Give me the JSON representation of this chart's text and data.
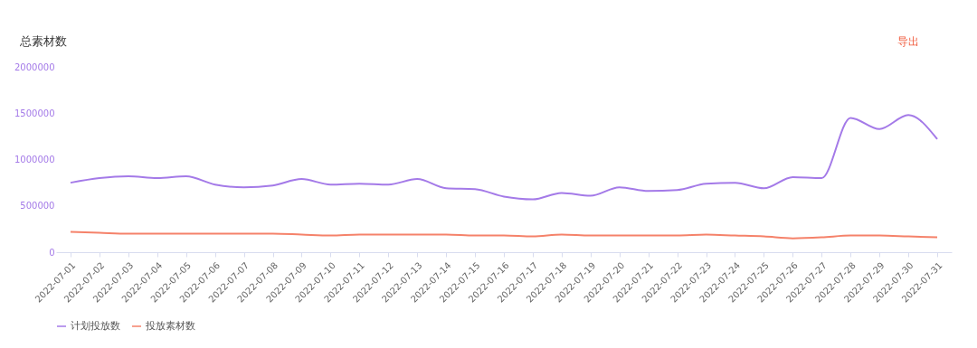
{
  "chart_data": {
    "type": "line",
    "categories": [
      "2022-07-01",
      "2022-07-02",
      "2022-07-03",
      "2022-07-04",
      "2022-07-05",
      "2022-07-06",
      "2022-07-07",
      "2022-07-08",
      "2022-07-09",
      "2022-07-10",
      "2022-07-11",
      "2022-07-12",
      "2022-07-13",
      "2022-07-14",
      "2022-07-15",
      "2022-07-16",
      "2022-07-17",
      "2022-07-18",
      "2022-07-19",
      "2022-07-20",
      "2022-07-21",
      "2022-07-22",
      "2022-07-23",
      "2022-07-24",
      "2022-07-25",
      "2022-07-26",
      "2022-07-27",
      "2022-07-28",
      "2022-07-29",
      "2022-07-30",
      "2022-07-31"
    ],
    "series": [
      {
        "name": "计划投放数",
        "color": "#a47ae8",
        "values": [
          750000,
          800000,
          820000,
          800000,
          820000,
          730000,
          700000,
          720000,
          790000,
          730000,
          740000,
          730000,
          790000,
          690000,
          680000,
          600000,
          570000,
          640000,
          610000,
          700000,
          660000,
          670000,
          740000,
          750000,
          690000,
          810000,
          800000,
          1450000,
          1330000,
          1480000,
          1220000
        ]
      },
      {
        "name": "投放素材数",
        "color": "#f5826a",
        "values": [
          220000,
          210000,
          200000,
          200000,
          200000,
          200000,
          200000,
          200000,
          190000,
          180000,
          190000,
          190000,
          190000,
          190000,
          180000,
          180000,
          170000,
          190000,
          180000,
          180000,
          180000,
          180000,
          190000,
          180000,
          170000,
          150000,
          160000,
          180000,
          180000,
          170000,
          160000
        ]
      }
    ],
    "ylim": [
      0,
      2000000
    ],
    "yticks": [
      0,
      500000,
      1000000,
      1500000,
      2000000
    ],
    "grid": false,
    "legend": "bottom",
    "annotations": [
      "总素材数",
      "导出"
    ]
  }
}
